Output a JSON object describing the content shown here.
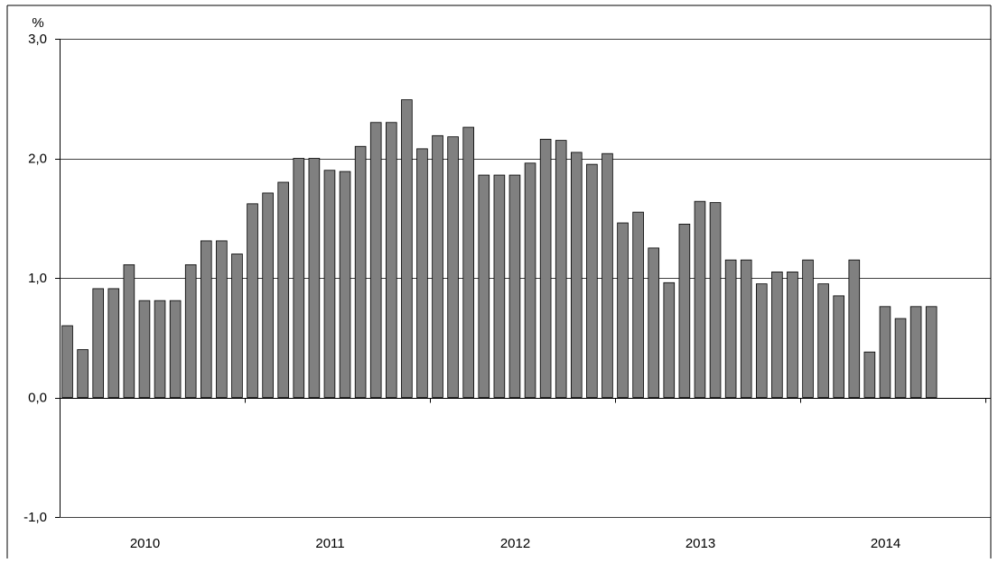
{
  "chart_data": {
    "type": "bar",
    "unit_label": "%",
    "ylim": [
      -1.0,
      3.0
    ],
    "yticks": [
      -1.0,
      0.0,
      1.0,
      2.0,
      3.0
    ],
    "ytick_labels": [
      "-1,0",
      "0,0",
      "1,0",
      "2,0",
      "3,0"
    ],
    "grid": true,
    "legend": "none",
    "years": [
      "2010",
      "2011",
      "2012",
      "2013",
      "2014"
    ],
    "months_per_year": 12,
    "series": [
      {
        "color": "#808080",
        "values": [
          0.6,
          0.4,
          0.91,
          0.91,
          1.11,
          0.81,
          0.81,
          0.81,
          1.11,
          1.31,
          1.31,
          1.2,
          1.62,
          1.71,
          1.8,
          2.0,
          2.0,
          1.9,
          1.89,
          2.1,
          2.3,
          2.3,
          2.49,
          2.08,
          2.19,
          2.18,
          2.26,
          1.86,
          1.86,
          1.86,
          1.96,
          2.16,
          2.15,
          2.05,
          1.95,
          2.04,
          1.46,
          1.55,
          1.25,
          0.96,
          1.45,
          1.64,
          1.63,
          1.15,
          1.15,
          0.95,
          1.05,
          1.05,
          1.15,
          0.95,
          0.85,
          1.15,
          0.38,
          0.76,
          0.66,
          0.76,
          0.76
        ]
      }
    ]
  }
}
